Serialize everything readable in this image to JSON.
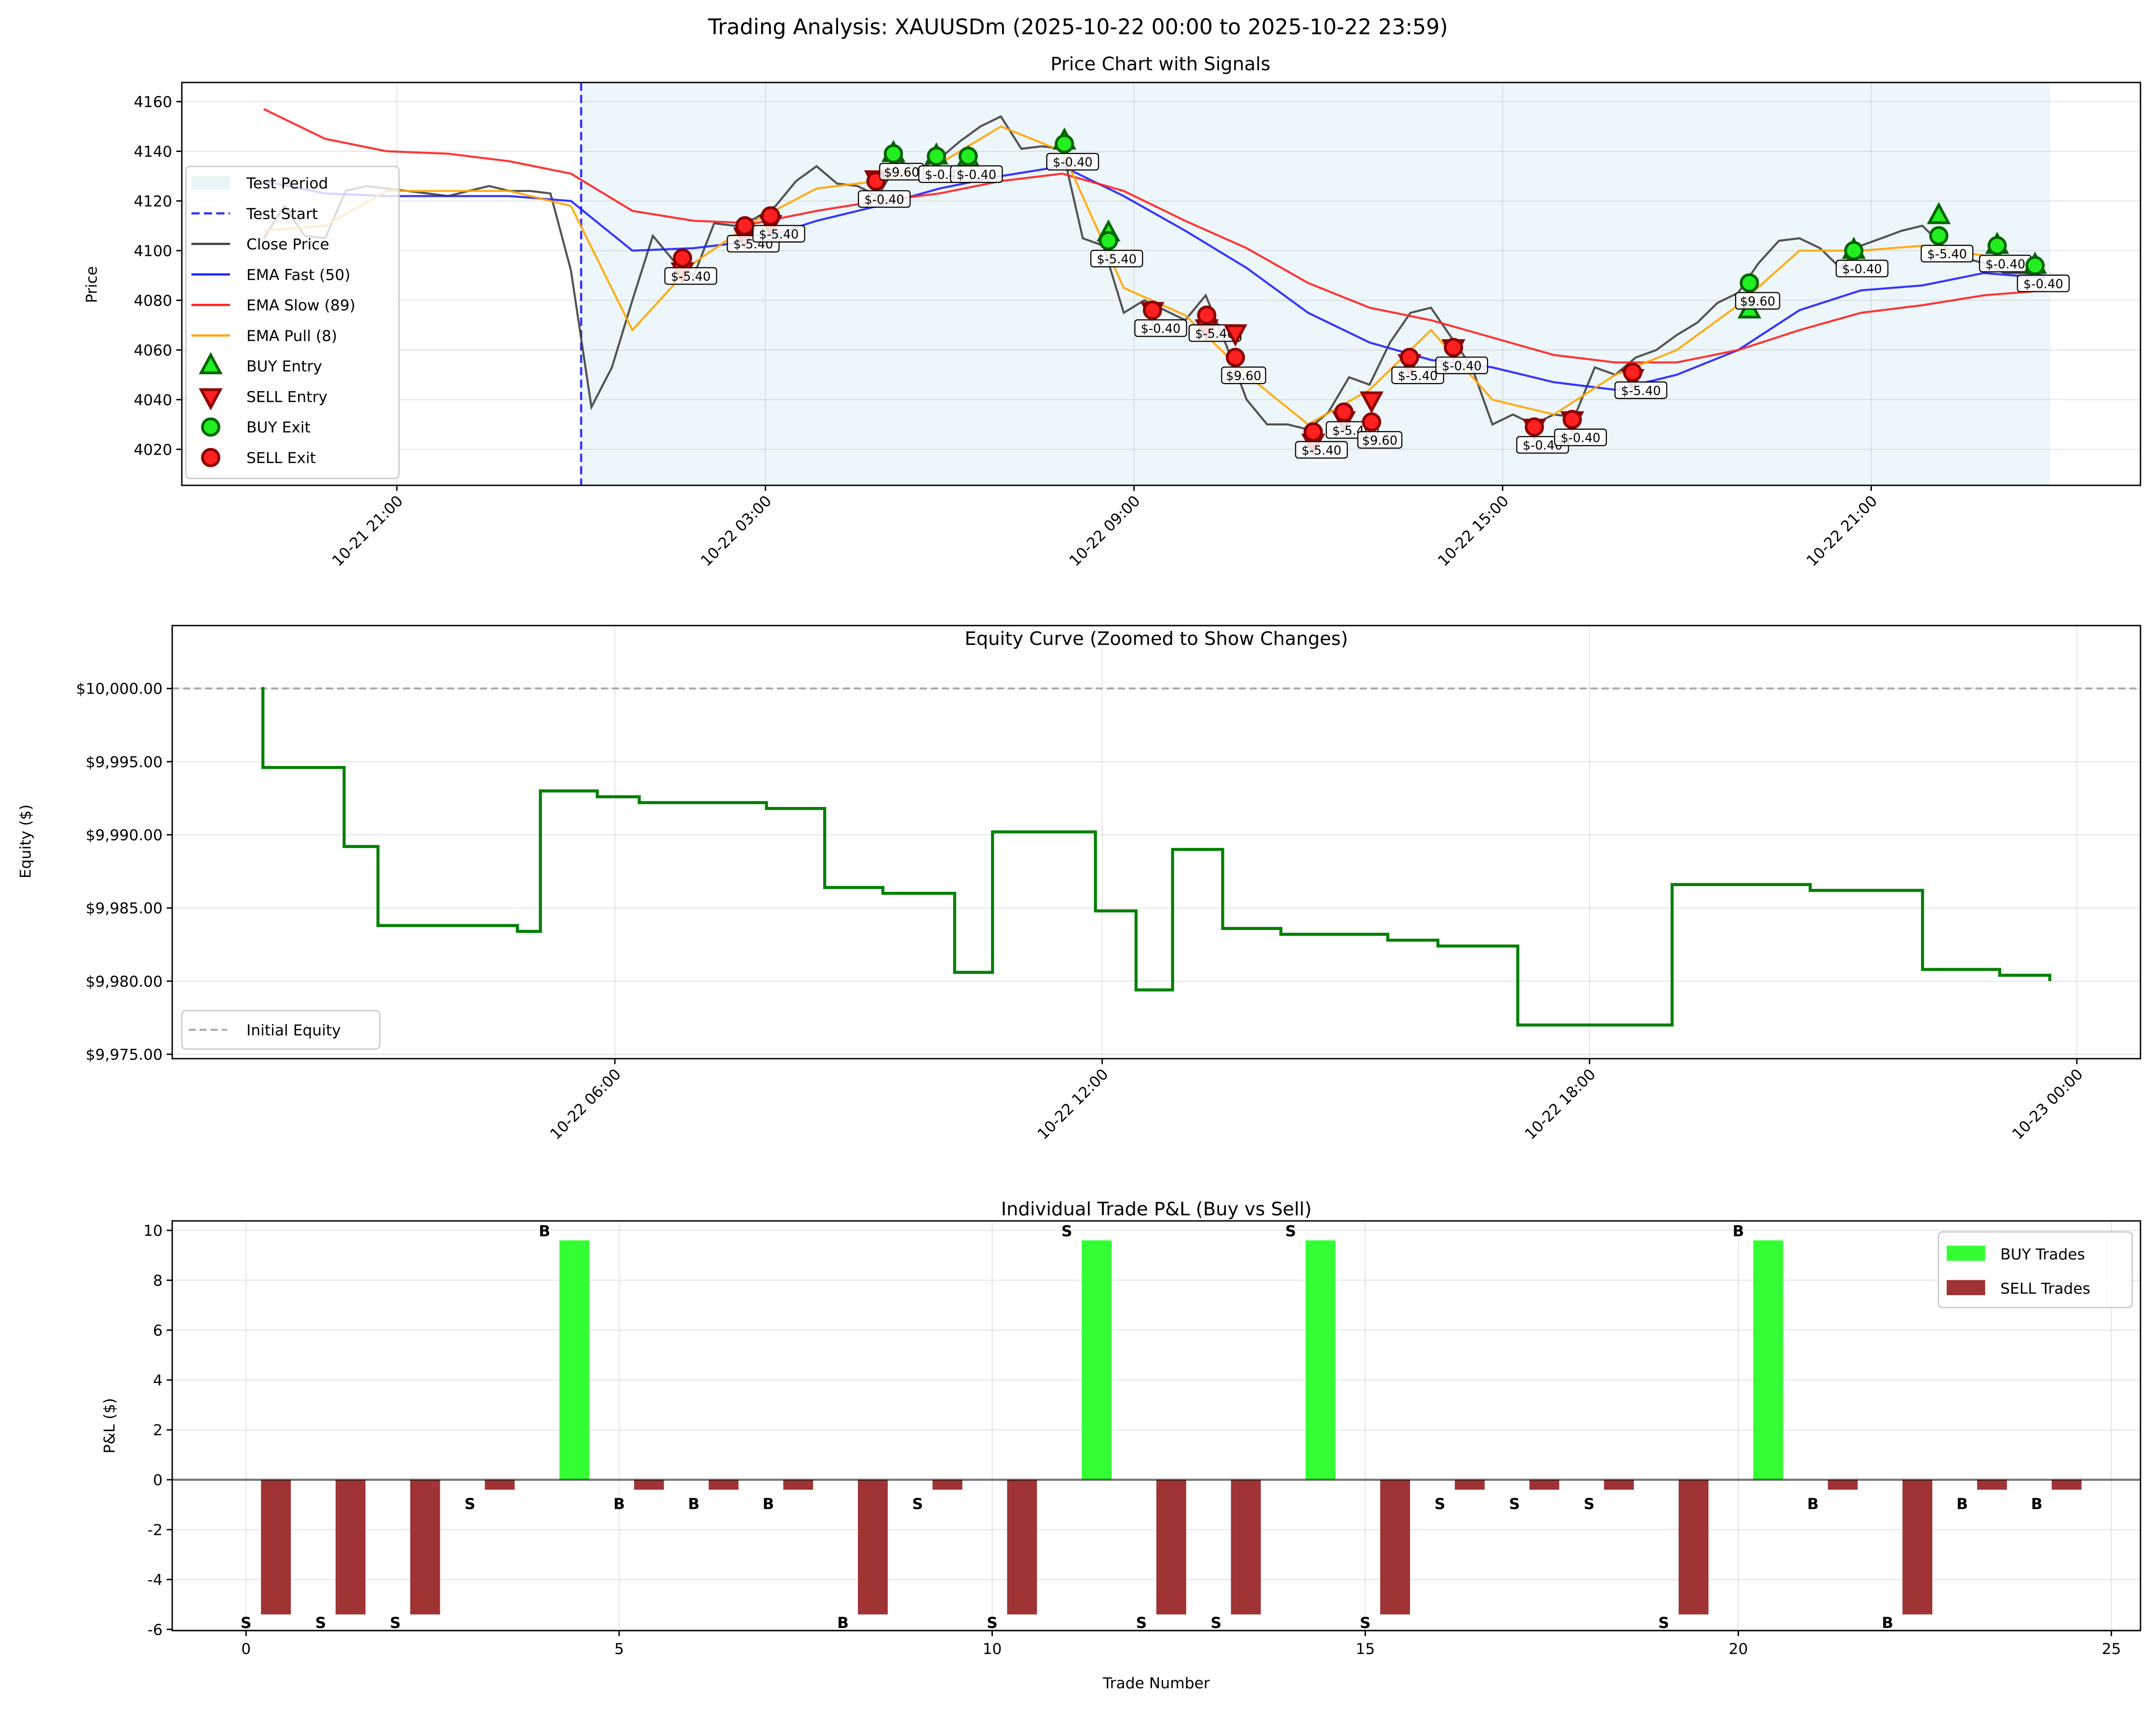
{
  "title": "Trading Analysis: XAUUSDm (2025-10-22 00:00 to 2025-10-22 23:59)",
  "chart_data": [
    {
      "type": "line",
      "title": "Price Chart with Signals",
      "xlabel": "",
      "ylabel": "Price",
      "xlim": [
        "2025-10-21 17:30",
        "2025-10-23 01:23"
      ],
      "ylim": [
        4005.5,
        4167.7
      ],
      "grid": true,
      "legend_position": "center-left",
      "yticks": [
        4020,
        4040,
        4060,
        4080,
        4100,
        4120,
        4140,
        4160
      ],
      "xticks": [
        {
          "value": "2025-10-21 21:00",
          "label": "10-21 21:00"
        },
        {
          "value": "2025-10-22 03:00",
          "label": "10-22 03:00"
        },
        {
          "value": "2025-10-22 09:00",
          "label": "10-22 09:00"
        },
        {
          "value": "2025-10-22 15:00",
          "label": "10-22 15:00"
        },
        {
          "value": "2025-10-22 21:00",
          "label": "10-22 21:00"
        }
      ],
      "test_period": {
        "label": "Test Period",
        "start": "2025-10-22 00:00",
        "end": "2025-10-22 23:55",
        "color": "#add8e6"
      },
      "test_start": {
        "label": "Test Start",
        "time": "2025-10-22 00:00",
        "color": "#3333ff"
      },
      "series": [
        {
          "name": "Close Price",
          "color": "#404040",
          "start": "2025-10-21 18:50",
          "interval_minutes": 20,
          "values": [
            4105,
            4118,
            4106,
            4105,
            4124,
            4126,
            4125,
            4124,
            4123,
            4122,
            4124,
            4126,
            4124,
            4124,
            4123,
            4092,
            4037,
            4053,
            4080,
            4106,
            4096,
            4090,
            4111,
            4110,
            4113,
            4118,
            4128,
            4134,
            4127,
            4126,
            4122,
            4136,
            4133,
            4137,
            4144,
            4150,
            4154,
            4141,
            4142,
            4141,
            4105,
            4102,
            4075,
            4080,
            4076,
            4072,
            4082,
            4062,
            4040,
            4030,
            4030,
            4028,
            4035,
            4049,
            4046,
            4063,
            4075,
            4077,
            4065,
            4053,
            4030,
            4034,
            4030,
            4034,
            4033,
            4053,
            4050,
            4057,
            4060,
            4066,
            4071,
            4079,
            4083,
            4095,
            4104,
            4105,
            4101,
            4093,
            4102,
            4105,
            4108,
            4110,
            4102,
            4097,
            4095,
            4091,
            4091,
            4090
          ]
        },
        {
          "name": "EMA Fast (50)",
          "color": "#2020ff",
          "start": "2025-10-21 18:50",
          "interval_minutes": 60,
          "values": [
            4128,
            4123,
            4122,
            4122,
            4122,
            4120,
            4100,
            4101,
            4104,
            4112,
            4118,
            4125,
            4130,
            4134,
            4122,
            4108,
            4093,
            4075,
            4063,
            4056,
            4053,
            4047,
            4044,
            4050,
            4060,
            4076,
            4084,
            4086,
            4091,
            4089
          ]
        },
        {
          "name": "EMA Slow (89)",
          "color": "#ff2020",
          "start": "2025-10-21 18:50",
          "interval_minutes": 60,
          "values": [
            4157,
            4145,
            4140,
            4139,
            4136,
            4131,
            4116,
            4112,
            4111,
            4116,
            4120,
            4123,
            4128,
            4131,
            4124,
            4112,
            4101,
            4087,
            4077,
            4072,
            4065,
            4058,
            4055,
            4055,
            4060,
            4068,
            4075,
            4078,
            4082,
            4084
          ]
        },
        {
          "name": "EMA Pull (8)",
          "color": "#ffa500",
          "start": "2025-10-21 18:50",
          "interval_minutes": 60,
          "values": [
            4108,
            4110,
            4124,
            4124,
            4124,
            4118,
            4068,
            4095,
            4112,
            4125,
            4128,
            4135,
            4150,
            4140,
            4085,
            4074,
            4050,
            4030,
            4044,
            4068,
            4040,
            4034,
            4050,
            4060,
            4078,
            4100,
            4100,
            4102,
            4098,
            4094
          ]
        }
      ],
      "signal_legend": {
        "buy_entry": "BUY Entry",
        "sell_entry": "SELL Entry",
        "buy_exit": "BUY Exit",
        "sell_exit": "SELL Exit"
      },
      "trades": [
        {
          "side": "SELL",
          "time": "2025-10-22 01:39",
          "entry_price": 4092,
          "exit_price": 4097,
          "pnl_label": "$-5.40"
        },
        {
          "side": "SELL",
          "time": "2025-10-22 02:40",
          "entry_price": 4106,
          "exit_price": 4110,
          "pnl_label": "$-5.40"
        },
        {
          "side": "SELL",
          "time": "2025-10-22 03:05",
          "entry_price": 4111,
          "exit_price": 4114,
          "pnl_label": "$-5.40"
        },
        {
          "side": "SELL",
          "time": "2025-10-22 04:48",
          "entry_price": 4129,
          "exit_price": 4128,
          "pnl_label": "$-0.40"
        },
        {
          "side": "BUY",
          "time": "2025-10-22 05:05",
          "entry_price": 4139,
          "exit_price": 4139,
          "pnl_label": "$9.60"
        },
        {
          "side": "BUY",
          "time": "2025-10-22 05:47",
          "entry_price": 4138,
          "exit_price": 4138,
          "pnl_label": "$-0.40"
        },
        {
          "side": "BUY",
          "time": "2025-10-22 06:18",
          "entry_price": 4137,
          "exit_price": 4138,
          "pnl_label": "$-0.40"
        },
        {
          "side": "BUY",
          "time": "2025-10-22 07:52",
          "entry_price": 4144,
          "exit_price": 4143,
          "pnl_label": "$-0.40"
        },
        {
          "side": "BUY",
          "time": "2025-10-22 08:35",
          "entry_price": 4107,
          "exit_price": 4104,
          "pnl_label": "$-5.40"
        },
        {
          "side": "SELL",
          "time": "2025-10-22 09:18",
          "entry_price": 4076,
          "exit_price": 4076,
          "pnl_label": "$-0.40"
        },
        {
          "side": "SELL",
          "time": "2025-10-22 10:11",
          "entry_price": 4069,
          "exit_price": 4074,
          "pnl_label": "$-5.40"
        },
        {
          "side": "SELL",
          "time": "2025-10-22 10:39",
          "entry_price": 4067,
          "exit_price": 4057,
          "pnl_label": "$9.60"
        },
        {
          "side": "SELL",
          "time": "2025-10-22 11:55",
          "entry_price": 4023,
          "exit_price": 4027,
          "pnl_label": "$-5.40"
        },
        {
          "side": "SELL",
          "time": "2025-10-22 12:25",
          "entry_price": 4032,
          "exit_price": 4035,
          "pnl_label": "$-5.40"
        },
        {
          "side": "SELL",
          "time": "2025-10-22 12:52",
          "entry_price": 4040,
          "exit_price": 4031,
          "pnl_label": "$9.60"
        },
        {
          "side": "SELL",
          "time": "2025-10-22 13:29",
          "entry_price": 4055,
          "exit_price": 4057,
          "pnl_label": "$-5.40"
        },
        {
          "side": "SELL",
          "time": "2025-10-22 14:12",
          "entry_price": 4061,
          "exit_price": 4061,
          "pnl_label": "$-0.40"
        },
        {
          "side": "SELL",
          "time": "2025-10-22 15:31",
          "entry_price": 4029,
          "exit_price": 4029,
          "pnl_label": "$-0.40"
        },
        {
          "side": "SELL",
          "time": "2025-10-22 16:08",
          "entry_price": 4032,
          "exit_price": 4032,
          "pnl_label": "$-0.40"
        },
        {
          "side": "SELL",
          "time": "2025-10-22 17:07",
          "entry_price": 4049,
          "exit_price": 4051,
          "pnl_label": "$-5.40"
        },
        {
          "side": "BUY",
          "time": "2025-10-22 19:01",
          "entry_price": 4076,
          "exit_price": 4087,
          "pnl_label": "$9.60"
        },
        {
          "side": "BUY",
          "time": "2025-10-22 20:43",
          "entry_price": 4100,
          "exit_price": 4100,
          "pnl_label": "$-0.40"
        },
        {
          "side": "BUY",
          "time": "2025-10-22 22:06",
          "entry_price": 4114,
          "exit_price": 4106,
          "pnl_label": "$-5.40"
        },
        {
          "side": "BUY",
          "time": "2025-10-22 23:03",
          "entry_price": 4102,
          "exit_price": 4102,
          "pnl_label": "$-0.40"
        },
        {
          "side": "BUY",
          "time": "2025-10-22 23:40",
          "entry_price": 4094,
          "exit_price": 4094,
          "pnl_label": "$-0.40"
        }
      ]
    },
    {
      "type": "line",
      "title": "Equity Curve (Zoomed to Show Changes)",
      "xlabel": "",
      "ylabel": "Equity ($)",
      "xlim": [
        "2025-10-22 00:33",
        "2025-10-23 00:47"
      ],
      "ylim": [
        9974.7,
        10004.3
      ],
      "grid": true,
      "legend_position": "lower-left",
      "yticks": [
        {
          "value": 9975,
          "label": "$9,975.00"
        },
        {
          "value": 9980,
          "label": "$9,980.00"
        },
        {
          "value": 9985,
          "label": "$9,985.00"
        },
        {
          "value": 9990,
          "label": "$9,990.00"
        },
        {
          "value": 9995,
          "label": "$9,995.00"
        },
        {
          "value": 10000,
          "label": "$10,000.00"
        }
      ],
      "xticks": [
        {
          "value": "2025-10-22 06:00",
          "label": "10-22 06:00"
        },
        {
          "value": "2025-10-22 12:00",
          "label": "10-22 12:00"
        },
        {
          "value": "2025-10-22 18:00",
          "label": "10-22 18:00"
        },
        {
          "value": "2025-10-23 00:00",
          "label": "10-23 00:00"
        }
      ],
      "initial_equity": {
        "value": 10000,
        "label": "Initial Equity",
        "color": "#aaaaaa"
      },
      "series": [
        {
          "color": "#008000",
          "drawstyle": "steps-post",
          "points": [
            [
              "2025-10-22 01:39",
              10000
            ],
            [
              "2025-10-22 01:40",
              9994.6
            ],
            [
              "2025-10-22 02:40",
              9989.2
            ],
            [
              "2025-10-22 03:05",
              9983.8
            ],
            [
              "2025-10-22 04:48",
              9983.4
            ],
            [
              "2025-10-22 05:05",
              9993.0
            ],
            [
              "2025-10-22 05:47",
              9992.6
            ],
            [
              "2025-10-22 06:18",
              9992.2
            ],
            [
              "2025-10-22 07:52",
              9991.8
            ],
            [
              "2025-10-22 08:35",
              9986.4
            ],
            [
              "2025-10-22 09:18",
              9986.0
            ],
            [
              "2025-10-22 10:11",
              9980.6
            ],
            [
              "2025-10-22 10:39",
              9990.2
            ],
            [
              "2025-10-22 11:55",
              9984.8
            ],
            [
              "2025-10-22 12:25",
              9979.4
            ],
            [
              "2025-10-22 12:52",
              9989.0
            ],
            [
              "2025-10-22 13:29",
              9983.6
            ],
            [
              "2025-10-22 14:12",
              9983.2
            ],
            [
              "2025-10-22 15:31",
              9982.8
            ],
            [
              "2025-10-22 16:08",
              9982.4
            ],
            [
              "2025-10-22 17:07",
              9977.0
            ],
            [
              "2025-10-22 19:01",
              9986.6
            ],
            [
              "2025-10-22 20:43",
              9986.2
            ],
            [
              "2025-10-22 22:06",
              9980.8
            ],
            [
              "2025-10-22 23:03",
              9980.4
            ],
            [
              "2025-10-22 23:40",
              9980.0
            ]
          ]
        }
      ]
    },
    {
      "type": "bar",
      "title": "Individual Trade P&L (Buy vs Sell)",
      "xlabel": "Trade Number",
      "ylabel": "P&L ($)",
      "xlim": [
        -0.99,
        25.39
      ],
      "ylim": [
        -6.05,
        10.38
      ],
      "grid": true,
      "legend_position": "top-right",
      "xticks": [
        0,
        5,
        10,
        15,
        20,
        25
      ],
      "yticks": [
        -6,
        -4,
        -2,
        0,
        2,
        4,
        6,
        8,
        10
      ],
      "categories": [
        0,
        1,
        2,
        3,
        4,
        5,
        6,
        7,
        8,
        9,
        10,
        11,
        12,
        13,
        14,
        15,
        16,
        17,
        18,
        19,
        20,
        21,
        22,
        23,
        24
      ],
      "values": [
        -5.4,
        -5.4,
        -5.4,
        -0.4,
        9.6,
        -0.4,
        -0.4,
        -0.4,
        -5.4,
        -0.4,
        -5.4,
        9.6,
        -5.4,
        -5.4,
        9.6,
        -5.4,
        -0.4,
        -0.4,
        -0.4,
        -5.4,
        9.6,
        -0.4,
        -5.4,
        -0.4,
        -0.4
      ],
      "side_labels": [
        "S",
        "S",
        "S",
        "S",
        "B",
        "B",
        "B",
        "B",
        "B",
        "S",
        "S",
        "S",
        "S",
        "S",
        "S",
        "S",
        "S",
        "S",
        "S",
        "S",
        "B",
        "B",
        "B",
        "B",
        "B"
      ],
      "legend": [
        {
          "name": "BUY Trades",
          "color": "#33ff33"
        },
        {
          "name": "SELL Trades",
          "color": "#a03333"
        }
      ]
    }
  ]
}
